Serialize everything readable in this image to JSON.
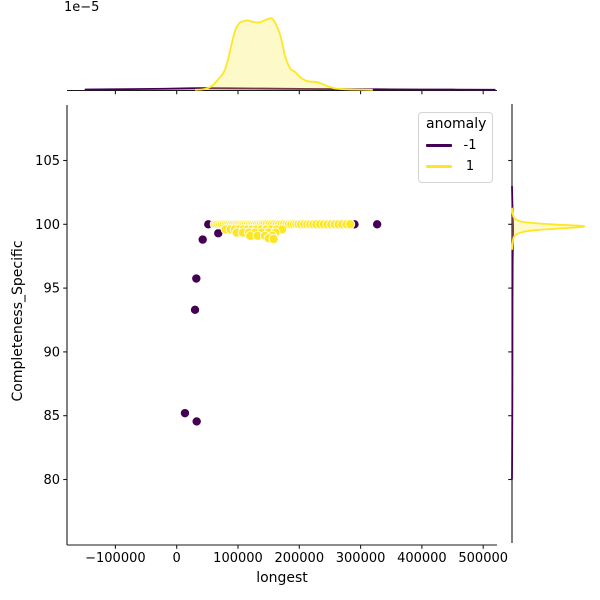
{
  "figure": {
    "background": "#ffffff"
  },
  "legend": {
    "title": "anomaly",
    "items": [
      {
        "label": "-1",
        "color": "#440154"
      },
      {
        "label": "1",
        "color": "#FDE725"
      }
    ]
  },
  "axes": {
    "main": {
      "xlabel": "longest",
      "ylabel": "Completeness_Specific",
      "x_ticks": [
        {
          "value": -100000,
          "label": "−100000"
        },
        {
          "value": 0,
          "label": "0"
        },
        {
          "value": 100000,
          "label": "100000"
        },
        {
          "value": 200000,
          "label": "200000"
        },
        {
          "value": 300000,
          "label": "300000"
        },
        {
          "value": 400000,
          "label": "400000"
        },
        {
          "value": 500000,
          "label": "500000"
        }
      ],
      "y_ticks": [
        {
          "value": 105,
          "label": "105"
        },
        {
          "value": 100,
          "label": "100"
        },
        {
          "value": 95,
          "label": "95"
        },
        {
          "value": 90,
          "label": "90"
        },
        {
          "value": 85,
          "label": "85"
        },
        {
          "value": 80,
          "label": "80"
        }
      ]
    },
    "marginal_top": {
      "offset_text": "1e−5"
    }
  },
  "chart_data": {
    "type": "scatter",
    "subtype": "seaborn-jointplot-with-marginal-kde",
    "x_variable": "longest",
    "y_variable": "Completeness_Specific",
    "hue_variable": "anomaly",
    "xlim": [
      -180000,
      522000
    ],
    "ylim": [
      74.8,
      109.3
    ],
    "grid": false,
    "legend_position": "upper right",
    "series": [
      {
        "name": "-1",
        "color": "#440154",
        "points": [
          [
            13500,
            85.2
          ],
          [
            32600,
            84.55
          ],
          [
            29900,
            93.3
          ],
          [
            32000,
            95.75
          ],
          [
            42400,
            98.8
          ],
          [
            51500,
            100.0
          ],
          [
            67800,
            99.3
          ],
          [
            92300,
            99.7
          ],
          [
            290000,
            100.0
          ],
          [
            327000,
            100.0
          ]
        ]
      },
      {
        "name": "1",
        "color": "#FDE725",
        "points": [
          [
            62000,
            100
          ],
          [
            65000,
            100
          ],
          [
            68000,
            100
          ],
          [
            71000,
            100
          ],
          [
            74000,
            100
          ],
          [
            77000,
            100
          ],
          [
            80000,
            100
          ],
          [
            83000,
            100
          ],
          [
            86000,
            100
          ],
          [
            89000,
            100
          ],
          [
            92000,
            100
          ],
          [
            95000,
            100
          ],
          [
            98000,
            100
          ],
          [
            101000,
            100
          ],
          [
            104000,
            100
          ],
          [
            107000,
            100
          ],
          [
            110000,
            100
          ],
          [
            113000,
            100
          ],
          [
            116000,
            100
          ],
          [
            119000,
            100
          ],
          [
            122000,
            100
          ],
          [
            125000,
            100
          ],
          [
            128000,
            100
          ],
          [
            131000,
            100
          ],
          [
            134000,
            100
          ],
          [
            137000,
            100
          ],
          [
            140000,
            100
          ],
          [
            143000,
            100
          ],
          [
            147000,
            100
          ],
          [
            151000,
            100
          ],
          [
            155000,
            100
          ],
          [
            159000,
            100
          ],
          [
            163000,
            100
          ],
          [
            167000,
            100
          ],
          [
            171000,
            100
          ],
          [
            175000,
            100
          ],
          [
            179000,
            100
          ],
          [
            183000,
            100
          ],
          [
            187000,
            100
          ],
          [
            191000,
            100
          ],
          [
            195000,
            100
          ],
          [
            199000,
            100
          ],
          [
            203000,
            100
          ],
          [
            208000,
            100
          ],
          [
            213000,
            100
          ],
          [
            218000,
            100
          ],
          [
            223000,
            100
          ],
          [
            228000,
            100
          ],
          [
            234000,
            100
          ],
          [
            240000,
            100
          ],
          [
            246000,
            100
          ],
          [
            252000,
            100
          ],
          [
            258000,
            100
          ],
          [
            264000,
            100
          ],
          [
            270000,
            100
          ],
          [
            277000,
            100
          ],
          [
            283000,
            100
          ],
          [
            80000,
            99.6
          ],
          [
            88000,
            99.6
          ],
          [
            95000,
            99.6
          ],
          [
            102000,
            99.6
          ],
          [
            109000,
            99.6
          ],
          [
            116000,
            99.6
          ],
          [
            123000,
            99.6
          ],
          [
            130000,
            99.6
          ],
          [
            138000,
            99.6
          ],
          [
            146000,
            99.6
          ],
          [
            154000,
            99.6
          ],
          [
            163000,
            99.6
          ],
          [
            172000,
            99.6
          ],
          [
            98000,
            99.35
          ],
          [
            108000,
            99.35
          ],
          [
            118000,
            99.35
          ],
          [
            128000,
            99.35
          ],
          [
            139000,
            99.35
          ],
          [
            150000,
            99.35
          ],
          [
            161000,
            99.35
          ],
          [
            120000,
            99.1
          ],
          [
            132000,
            99.1
          ],
          [
            144000,
            99.1
          ],
          [
            156000,
            99.1
          ],
          [
            150000,
            98.9
          ],
          [
            158000,
            98.85
          ]
        ]
      }
    ],
    "marginal_top_kde": {
      "note": "density of longest; axis offset 1e−5; heights relative to yellow peak",
      "series": [
        {
          "name": "-1",
          "color": "#440154",
          "curve": [
            [
              -150000,
              0.004
            ],
            [
              -80000,
              0.009
            ],
            [
              -20000,
              0.015
            ],
            [
              20000,
              0.021
            ],
            [
              50000,
              0.023
            ],
            [
              90000,
              0.021
            ],
            [
              140000,
              0.017
            ],
            [
              200000,
              0.013
            ],
            [
              270000,
              0.009
            ],
            [
              350000,
              0.006
            ],
            [
              450000,
              0.003
            ],
            [
              520000,
              0.001
            ]
          ]
        },
        {
          "name": "1",
          "color": "#FDE725",
          "curve": [
            [
              30000,
              0
            ],
            [
              45000,
              0.01
            ],
            [
              55000,
              0.04
            ],
            [
              63000,
              0.1
            ],
            [
              70000,
              0.17
            ],
            [
              77000,
              0.25
            ],
            [
              83000,
              0.4
            ],
            [
              88000,
              0.58
            ],
            [
              95000,
              0.82
            ],
            [
              103000,
              0.94
            ],
            [
              110000,
              0.96
            ],
            [
              116000,
              0.97
            ],
            [
              124000,
              0.95
            ],
            [
              130000,
              0.944
            ],
            [
              136000,
              0.945
            ],
            [
              143000,
              0.97
            ],
            [
              149000,
              0.99
            ],
            [
              155000,
              1.0
            ],
            [
              161000,
              0.93
            ],
            [
              168000,
              0.79
            ],
            [
              173000,
              0.62
            ],
            [
              177000,
              0.465
            ],
            [
              185000,
              0.3
            ],
            [
              193000,
              0.25
            ],
            [
              201000,
              0.18
            ],
            [
              210000,
              0.13
            ],
            [
              218000,
              0.115
            ],
            [
              228000,
              0.11
            ],
            [
              238000,
              0.08
            ],
            [
              248000,
              0.045
            ],
            [
              258000,
              0.02
            ],
            [
              270000,
              0.01
            ],
            [
              290000,
              0.004
            ],
            [
              320000,
              0
            ]
          ]
        }
      ]
    },
    "marginal_right_kde": {
      "note": "density of Completeness_Specific; widths relative to yellow peak",
      "series": [
        {
          "name": "-1",
          "color": "#440154",
          "curve": [
            [
              103,
              0
            ],
            [
              101,
              0.008
            ],
            [
              100,
              0.014
            ],
            [
              99.5,
              0.015
            ],
            [
              99,
              0.013
            ],
            [
              97,
              0.009
            ],
            [
              94,
              0.007
            ],
            [
              90,
              0.006
            ],
            [
              86,
              0.005
            ],
            [
              82,
              0.002
            ],
            [
              80,
              0
            ]
          ]
        },
        {
          "name": "1",
          "color": "#FDE725",
          "curve": [
            [
              101.3,
              0
            ],
            [
              100.8,
              0.01
            ],
            [
              100.5,
              0.03
            ],
            [
              100.3,
              0.08
            ],
            [
              100.15,
              0.2
            ],
            [
              100.0,
              0.55
            ],
            [
              99.9,
              0.9
            ],
            [
              99.82,
              1.0
            ],
            [
              99.7,
              0.75
            ],
            [
              99.55,
              0.35
            ],
            [
              99.4,
              0.15
            ],
            [
              99.2,
              0.06
            ],
            [
              99.0,
              0.025
            ],
            [
              98.6,
              0.01
            ],
            [
              98.0,
              0
            ]
          ]
        }
      ]
    }
  }
}
